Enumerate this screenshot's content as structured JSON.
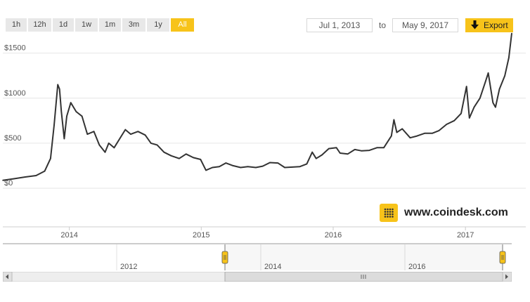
{
  "range_buttons": [
    {
      "label": "1h",
      "active": false
    },
    {
      "label": "12h",
      "active": false
    },
    {
      "label": "1d",
      "active": false
    },
    {
      "label": "1w",
      "active": false
    },
    {
      "label": "1m",
      "active": false
    },
    {
      "label": "3m",
      "active": false
    },
    {
      "label": "1y",
      "active": false
    },
    {
      "label": "All",
      "active": true
    }
  ],
  "date_range": {
    "from": "Jul 1, 2013",
    "to_label": "to",
    "to": "May 9, 2017"
  },
  "export_label": "Export",
  "brand": {
    "text": "www.coindesk.com"
  },
  "colors": {
    "accent": "#f7c31a",
    "line": "#333333",
    "grid": "#e6e6e6"
  },
  "chart_data": {
    "type": "line",
    "title": "",
    "xlabel": "",
    "ylabel": "",
    "ylim": [
      0,
      1700
    ],
    "y_ticks": [
      "$0",
      "$500",
      "$1000",
      "$1500"
    ],
    "x_ticks": [
      "2014",
      "2015",
      "2016",
      "2017"
    ],
    "x_range": [
      "2013-07-01",
      "2017-05-09"
    ],
    "series": [
      {
        "values": [
          [
            "2013-07-01",
            88
          ],
          [
            "2013-08-01",
            105
          ],
          [
            "2013-09-01",
            125
          ],
          [
            "2013-10-01",
            140
          ],
          [
            "2013-10-25",
            190
          ],
          [
            "2013-11-10",
            330
          ],
          [
            "2013-11-20",
            700
          ],
          [
            "2013-11-30",
            1150
          ],
          [
            "2013-12-05",
            1100
          ],
          [
            "2013-12-10",
            850
          ],
          [
            "2013-12-18",
            550
          ],
          [
            "2013-12-25",
            800
          ],
          [
            "2014-01-05",
            950
          ],
          [
            "2014-01-20",
            850
          ],
          [
            "2014-02-05",
            800
          ],
          [
            "2014-02-20",
            600
          ],
          [
            "2014-03-10",
            630
          ],
          [
            "2014-03-25",
            480
          ],
          [
            "2014-04-10",
            400
          ],
          [
            "2014-04-20",
            500
          ],
          [
            "2014-05-05",
            450
          ],
          [
            "2014-05-25",
            580
          ],
          [
            "2014-06-05",
            650
          ],
          [
            "2014-06-20",
            600
          ],
          [
            "2014-07-10",
            630
          ],
          [
            "2014-07-30",
            590
          ],
          [
            "2014-08-15",
            500
          ],
          [
            "2014-09-01",
            480
          ],
          [
            "2014-09-20",
            400
          ],
          [
            "2014-10-10",
            360
          ],
          [
            "2014-11-01",
            330
          ],
          [
            "2014-11-20",
            380
          ],
          [
            "2014-12-10",
            340
          ],
          [
            "2014-12-30",
            320
          ],
          [
            "2015-01-14",
            200
          ],
          [
            "2015-02-01",
            230
          ],
          [
            "2015-02-20",
            240
          ],
          [
            "2015-03-10",
            280
          ],
          [
            "2015-03-30",
            250
          ],
          [
            "2015-04-20",
            230
          ],
          [
            "2015-05-10",
            240
          ],
          [
            "2015-06-01",
            230
          ],
          [
            "2015-06-20",
            245
          ],
          [
            "2015-07-10",
            285
          ],
          [
            "2015-08-01",
            280
          ],
          [
            "2015-08-20",
            230
          ],
          [
            "2015-09-10",
            235
          ],
          [
            "2015-10-01",
            240
          ],
          [
            "2015-10-20",
            270
          ],
          [
            "2015-11-04",
            400
          ],
          [
            "2015-11-15",
            330
          ],
          [
            "2015-12-01",
            370
          ],
          [
            "2015-12-20",
            440
          ],
          [
            "2016-01-10",
            450
          ],
          [
            "2016-01-20",
            390
          ],
          [
            "2016-02-10",
            380
          ],
          [
            "2016-03-01",
            430
          ],
          [
            "2016-03-20",
            415
          ],
          [
            "2016-04-10",
            420
          ],
          [
            "2016-05-01",
            450
          ],
          [
            "2016-05-20",
            450
          ],
          [
            "2016-06-10",
            580
          ],
          [
            "2016-06-17",
            760
          ],
          [
            "2016-06-25",
            620
          ],
          [
            "2016-07-10",
            660
          ],
          [
            "2016-08-01",
            560
          ],
          [
            "2016-08-20",
            580
          ],
          [
            "2016-09-10",
            610
          ],
          [
            "2016-10-01",
            610
          ],
          [
            "2016-10-20",
            640
          ],
          [
            "2016-11-10",
            710
          ],
          [
            "2016-12-01",
            750
          ],
          [
            "2016-12-20",
            830
          ],
          [
            "2017-01-04",
            1130
          ],
          [
            "2017-01-12",
            780
          ],
          [
            "2017-01-25",
            900
          ],
          [
            "2017-02-10",
            1000
          ],
          [
            "2017-02-25",
            1180
          ],
          [
            "2017-03-05",
            1280
          ],
          [
            "2017-03-18",
            950
          ],
          [
            "2017-03-25",
            900
          ],
          [
            "2017-04-05",
            1100
          ],
          [
            "2017-04-20",
            1250
          ],
          [
            "2017-05-01",
            1450
          ],
          [
            "2017-05-09",
            1720
          ]
        ]
      }
    ]
  },
  "navigator": {
    "labels": [
      "2012",
      "2014",
      "2016"
    ]
  }
}
